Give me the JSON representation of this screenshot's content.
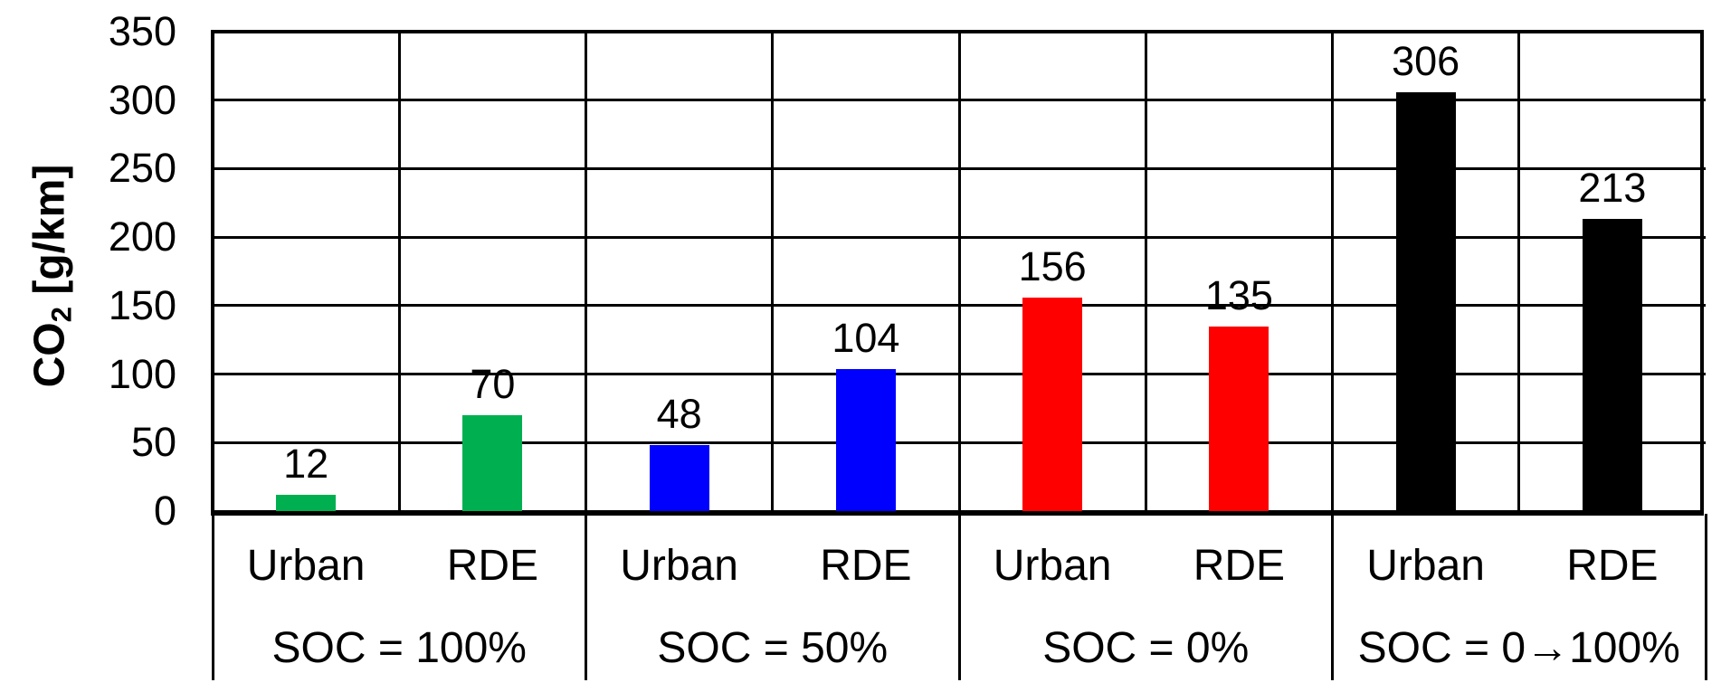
{
  "chart_data": {
    "type": "bar",
    "title": "",
    "ylabel": "CO2 [g/km]",
    "ylabel_parts": {
      "prefix": "CO",
      "sub": "2",
      "suffix": " [g/km]"
    },
    "xlabel": "",
    "ylim": [
      0,
      350
    ],
    "ytick_step": 50,
    "yticks": [
      350,
      300,
      250,
      200,
      150,
      100,
      50,
      0
    ],
    "grid": true,
    "legend": "none",
    "bar_value_labels_shown": true,
    "categories": [
      "Urban",
      "RDE",
      "Urban",
      "RDE",
      "Urban",
      "RDE",
      "Urban",
      "RDE"
    ],
    "groups": [
      {
        "label": "SOC = 100%",
        "color": "#00B050",
        "bars": [
          {
            "category": "Urban",
            "value": 12
          },
          {
            "category": "RDE",
            "value": 70
          }
        ]
      },
      {
        "label": "SOC = 50%",
        "color": "#0000FF",
        "bars": [
          {
            "category": "Urban",
            "value": 48
          },
          {
            "category": "RDE",
            "value": 104
          }
        ]
      },
      {
        "label": "SOC = 0%",
        "color": "#FF0000",
        "bars": [
          {
            "category": "Urban",
            "value": 156
          },
          {
            "category": "RDE",
            "value": 135
          }
        ]
      },
      {
        "label": "SOC = 0→100%",
        "color": "#000000",
        "bars": [
          {
            "category": "Urban",
            "value": 306
          },
          {
            "category": "RDE",
            "value": 213
          }
        ]
      }
    ]
  }
}
